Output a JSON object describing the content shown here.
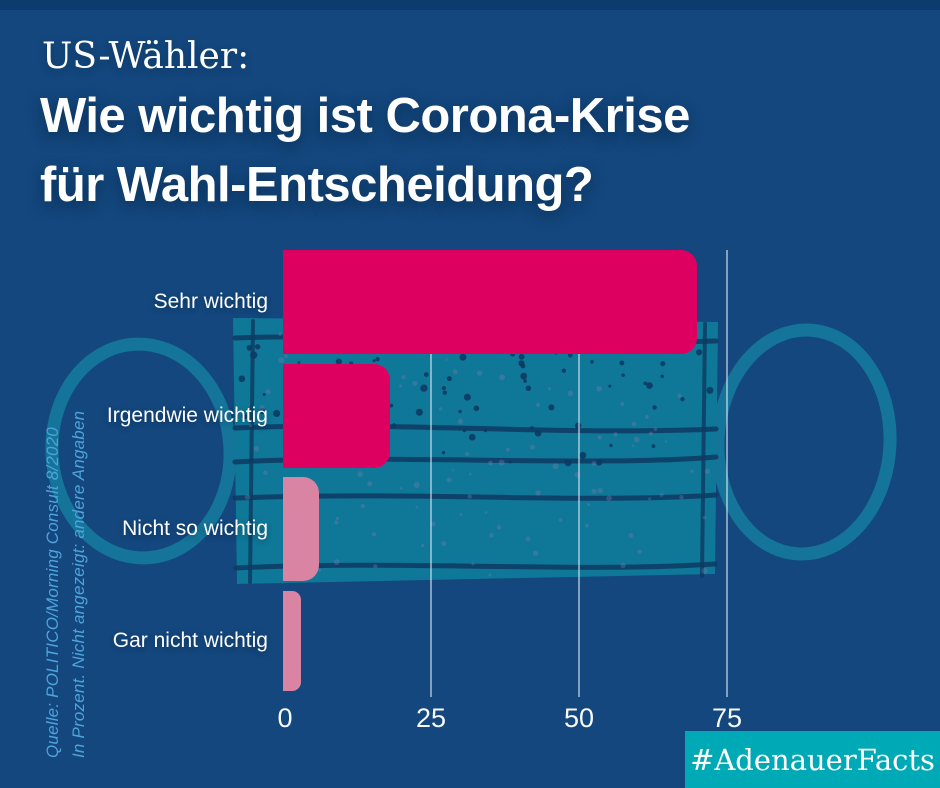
{
  "colors": {
    "background": "#13477D",
    "top_strip": "#0B3C6D",
    "mask_teal": "#0F7797",
    "loop_teal": "#16789B",
    "speckle_dark": "#0D3A63",
    "speckle_purple": "#7D7FB0",
    "gridline": "rgba(220,236,248,0.55)",
    "source_text": "#4EA3DC",
    "badge_bg": "#00A9B6",
    "text": "#FFFFFF",
    "bar_strong": "#DD0060",
    "bar_weak": "#D984A3"
  },
  "header": {
    "kicker": "US-Wähler:",
    "title": "Wie wichtig ist Corona-Krise\nfür Wahl-Entscheidung?"
  },
  "chart_data": {
    "type": "bar",
    "orientation": "horizontal",
    "title": "Wie wichtig ist Corona-Krise für Wahl-Entscheidung?",
    "categories": [
      "Sehr wichtig",
      "Irgendwie wichtig",
      "Nicht so wichtig",
      "Gar nicht wichtig"
    ],
    "values": [
      70,
      18,
      6,
      3
    ],
    "unit": "Prozent",
    "bar_colors": [
      "#DD0060",
      "#DD0060",
      "#D984A3",
      "#D984A3"
    ],
    "x_ticks": [
      0,
      25,
      50,
      75
    ],
    "x_tick_labels": [
      "0",
      "25",
      "50",
      "75"
    ],
    "xlim": [
      0,
      82
    ],
    "grid": true,
    "legend": false,
    "xlabel": "",
    "ylabel": ""
  },
  "source": {
    "line1": "Quelle: POLITICO/Morning Consult 8/2020",
    "line2": "In Prozent. Nicht angezeigt: andere Angaben"
  },
  "badge": {
    "label": "#AdenauerFacts"
  }
}
